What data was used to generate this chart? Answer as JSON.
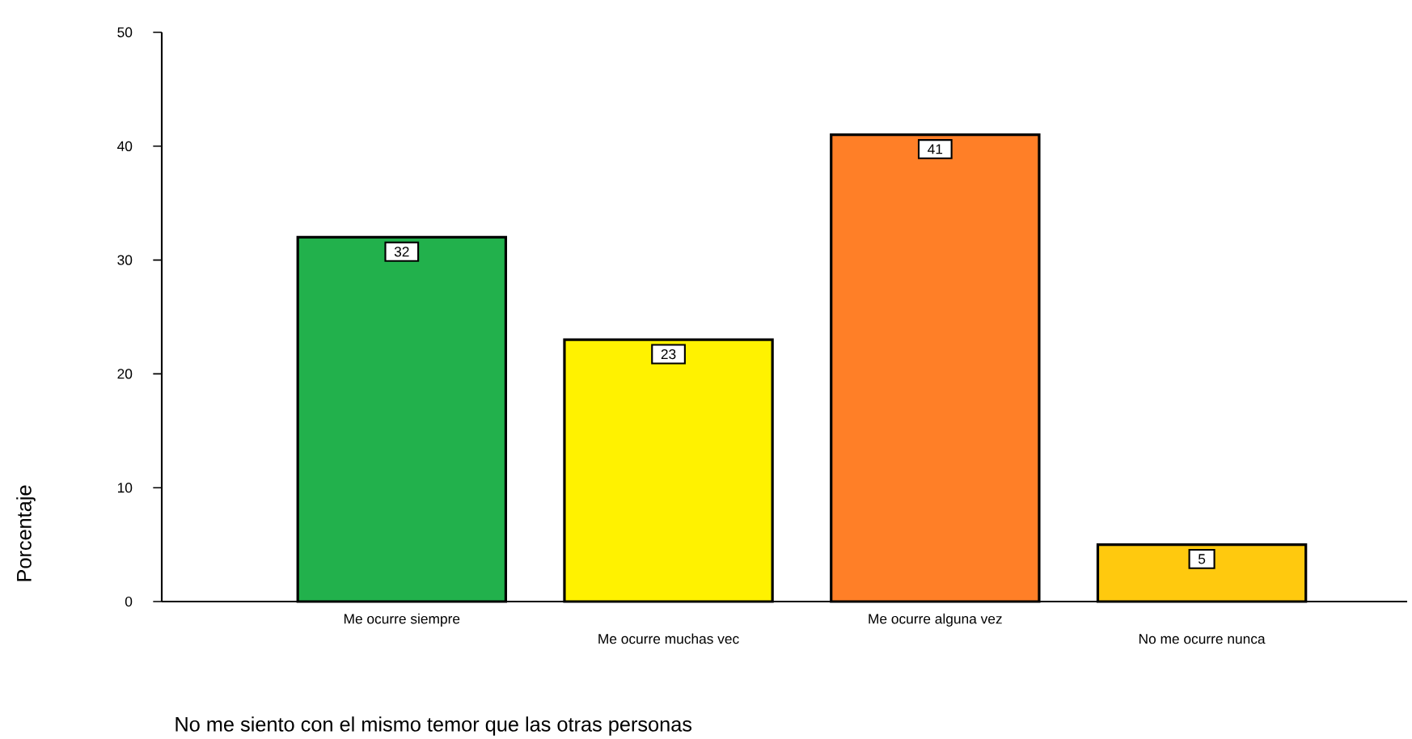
{
  "chart_data": {
    "type": "bar",
    "xlabel": "No me siento con el mismo temor que las otras personas",
    "ylabel": "Porcentaje",
    "categories": [
      "Me ocurre siempre",
      "Me ocurre muchas vec",
      "Me ocurre alguna vez",
      "No me ocurre nunca"
    ],
    "values": [
      32,
      23,
      41,
      5
    ],
    "colors": [
      "#22b14c",
      "#fff200",
      "#ff7f27",
      "#ffc90e"
    ],
    "ylim": [
      0,
      50
    ],
    "yticks": [
      0,
      10,
      20,
      30,
      40,
      50
    ],
    "data_labels": true,
    "grid": false
  }
}
